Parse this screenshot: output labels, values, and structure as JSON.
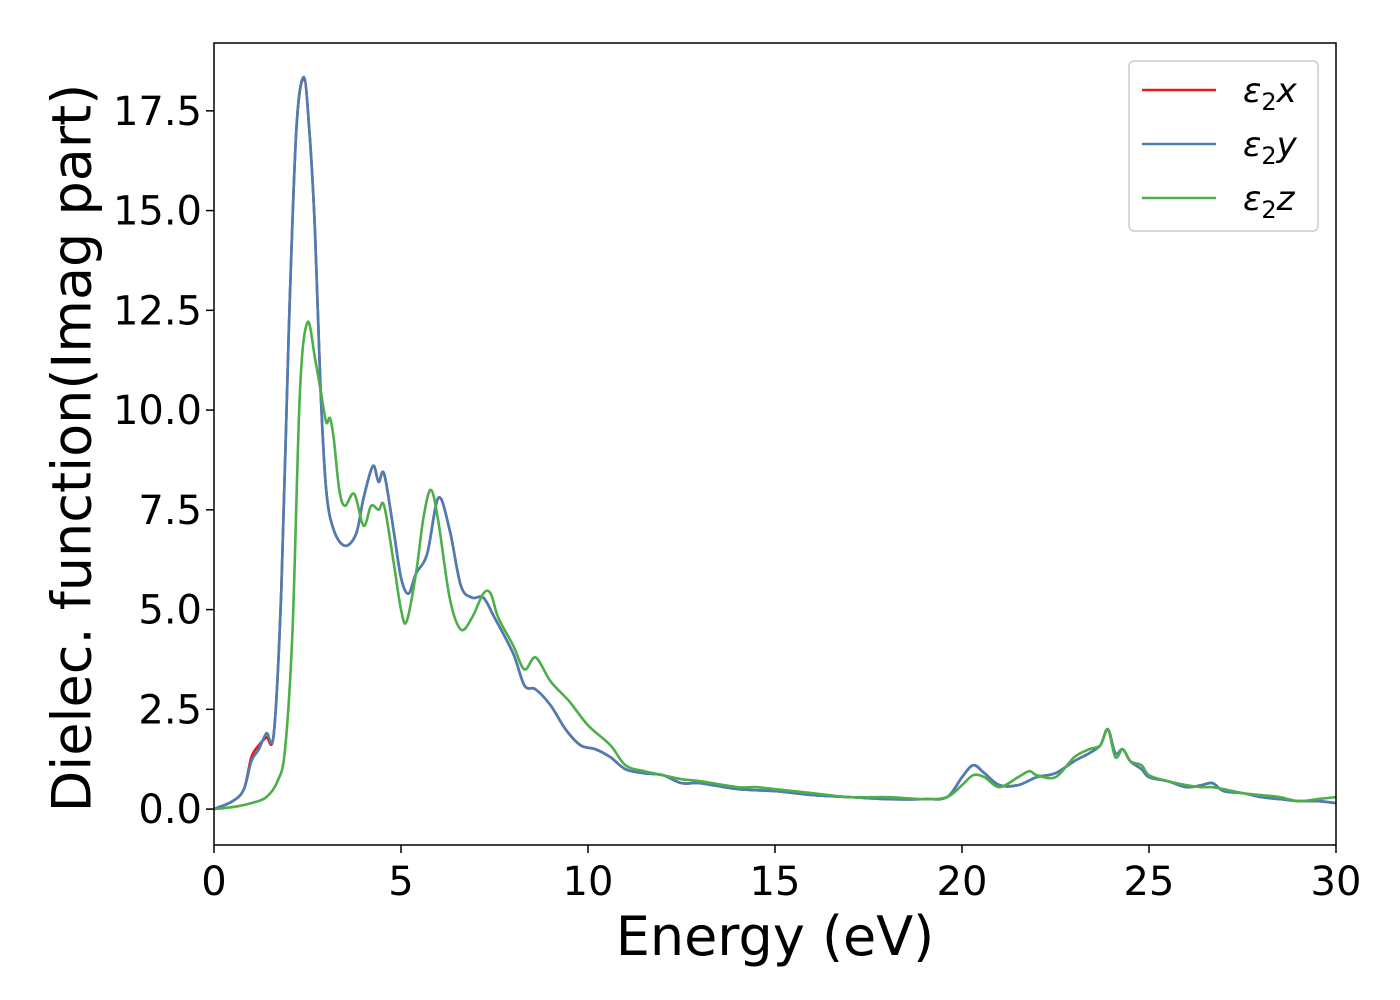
{
  "chart_data": {
    "type": "line",
    "title": "",
    "xlabel": "Energy (eV)",
    "ylabel": "Dielec. function(Imag part)",
    "xlim": [
      0,
      30
    ],
    "ylim": [
      -0.9,
      19.2
    ],
    "xticks": [
      "0",
      "5",
      "10",
      "15",
      "20",
      "25",
      "30"
    ],
    "yticks": [
      "0.0",
      "2.5",
      "5.0",
      "7.5",
      "10.0",
      "12.5",
      "15.0",
      "17.5"
    ],
    "grid": false,
    "legend_position": "top-right",
    "series": [
      {
        "name": "ε₂x",
        "legend_base": "ε",
        "legend_sub": "2",
        "legend_suffix": "x",
        "color": "#e41a1c",
        "x": [
          0,
          0.5,
          0.8,
          1.0,
          1.2,
          1.4,
          1.6,
          1.8,
          2.0,
          2.2,
          2.4,
          2.55,
          2.7,
          2.85,
          3.0,
          3.2,
          3.5,
          3.8,
          4.0,
          4.25,
          4.4,
          4.55,
          4.8,
          5.0,
          5.2,
          5.4,
          5.7,
          6.0,
          6.3,
          6.6,
          6.9,
          7.2,
          7.5,
          8.0,
          8.3,
          8.6,
          9.0,
          9.4,
          9.8,
          10.2,
          10.6,
          11.0,
          11.5,
          12.0,
          12.5,
          13.0,
          14.0,
          15.0,
          16.0,
          17.0,
          18.0,
          19.0,
          19.6,
          20.0,
          20.3,
          20.6,
          21.0,
          21.5,
          22.0,
          22.5,
          23.0,
          23.4,
          23.7,
          23.9,
          24.1,
          24.3,
          24.5,
          24.8,
          25.0,
          25.5,
          26.0,
          26.4,
          26.7,
          27.0,
          27.5,
          28.0,
          28.5,
          29.0,
          29.5,
          30.0
        ],
        "y": [
          0.0,
          0.2,
          0.5,
          1.3,
          1.6,
          1.8,
          1.9,
          5.5,
          12.0,
          17.0,
          18.3,
          17.0,
          14.5,
          10.5,
          8.0,
          7.0,
          6.6,
          6.9,
          7.8,
          8.6,
          8.2,
          8.4,
          7.0,
          5.8,
          5.4,
          5.9,
          6.4,
          7.8,
          7.0,
          5.6,
          5.3,
          5.3,
          4.8,
          3.9,
          3.1,
          3.0,
          2.6,
          2.0,
          1.6,
          1.5,
          1.3,
          1.0,
          0.9,
          0.85,
          0.65,
          0.65,
          0.5,
          0.45,
          0.35,
          0.3,
          0.25,
          0.25,
          0.3,
          0.8,
          1.1,
          0.9,
          0.6,
          0.6,
          0.8,
          0.9,
          1.2,
          1.4,
          1.6,
          2.0,
          1.4,
          1.5,
          1.2,
          1.0,
          0.8,
          0.7,
          0.55,
          0.6,
          0.65,
          0.45,
          0.4,
          0.3,
          0.25,
          0.2,
          0.2,
          0.15
        ]
      },
      {
        "name": "ε₂y",
        "legend_base": "ε",
        "legend_sub": "2",
        "legend_suffix": "y",
        "color": "#4a7eb5",
        "x": [
          0,
          0.5,
          0.8,
          1.0,
          1.2,
          1.4,
          1.6,
          1.8,
          2.0,
          2.2,
          2.4,
          2.55,
          2.7,
          2.85,
          3.0,
          3.2,
          3.5,
          3.8,
          4.0,
          4.25,
          4.4,
          4.55,
          4.8,
          5.0,
          5.2,
          5.4,
          5.7,
          6.0,
          6.3,
          6.6,
          6.9,
          7.2,
          7.5,
          8.0,
          8.3,
          8.6,
          9.0,
          9.4,
          9.8,
          10.2,
          10.6,
          11.0,
          11.5,
          12.0,
          12.5,
          13.0,
          14.0,
          15.0,
          16.0,
          17.0,
          18.0,
          19.0,
          19.6,
          20.0,
          20.3,
          20.6,
          21.0,
          21.5,
          22.0,
          22.5,
          23.0,
          23.4,
          23.7,
          23.9,
          24.1,
          24.3,
          24.5,
          24.8,
          25.0,
          25.5,
          26.0,
          26.4,
          26.7,
          27.0,
          27.5,
          28.0,
          28.5,
          29.0,
          29.5,
          30.0
        ],
        "y": [
          0.0,
          0.2,
          0.5,
          1.2,
          1.5,
          1.9,
          1.9,
          5.5,
          12.0,
          17.0,
          18.35,
          17.0,
          14.5,
          10.5,
          8.0,
          7.0,
          6.6,
          6.9,
          7.8,
          8.6,
          8.2,
          8.4,
          7.0,
          5.8,
          5.4,
          5.9,
          6.4,
          7.8,
          7.0,
          5.6,
          5.3,
          5.3,
          4.8,
          3.9,
          3.1,
          3.0,
          2.6,
          2.0,
          1.6,
          1.5,
          1.3,
          1.0,
          0.9,
          0.85,
          0.65,
          0.65,
          0.5,
          0.45,
          0.35,
          0.3,
          0.25,
          0.25,
          0.3,
          0.8,
          1.1,
          0.9,
          0.6,
          0.6,
          0.8,
          0.9,
          1.2,
          1.4,
          1.6,
          2.0,
          1.4,
          1.5,
          1.2,
          1.0,
          0.8,
          0.7,
          0.55,
          0.6,
          0.65,
          0.45,
          0.4,
          0.3,
          0.25,
          0.2,
          0.2,
          0.15
        ]
      },
      {
        "name": "ε₂z",
        "legend_base": "ε",
        "legend_sub": "2",
        "legend_suffix": "z",
        "color": "#4daf4a",
        "x": [
          0,
          0.5,
          1.0,
          1.4,
          1.7,
          1.9,
          2.1,
          2.3,
          2.5,
          2.7,
          2.85,
          3.0,
          3.1,
          3.2,
          3.35,
          3.5,
          3.75,
          4.0,
          4.2,
          4.4,
          4.55,
          4.8,
          5.0,
          5.15,
          5.4,
          5.6,
          5.8,
          6.0,
          6.3,
          6.6,
          6.9,
          7.2,
          7.4,
          7.6,
          8.0,
          8.3,
          8.6,
          9.0,
          9.5,
          10.0,
          10.6,
          11.0,
          11.5,
          12.0,
          12.5,
          13.0,
          14.0,
          14.5,
          15.0,
          16.0,
          17.0,
          18.0,
          19.0,
          19.6,
          20.0,
          20.3,
          20.6,
          21.0,
          21.5,
          21.8,
          22.0,
          22.5,
          23.0,
          23.4,
          23.7,
          23.9,
          24.1,
          24.3,
          24.5,
          24.8,
          25.0,
          25.5,
          26.0,
          26.4,
          26.7,
          27.0,
          27.5,
          28.0,
          28.5,
          29.0,
          29.5,
          30.0
        ],
        "y": [
          0.0,
          0.05,
          0.15,
          0.3,
          0.7,
          1.5,
          4.5,
          10.5,
          12.2,
          11.3,
          10.5,
          9.7,
          9.8,
          9.3,
          8.0,
          7.6,
          7.9,
          7.1,
          7.6,
          7.5,
          7.6,
          6.2,
          5.0,
          4.7,
          5.9,
          7.3,
          8.0,
          7.2,
          5.3,
          4.5,
          4.8,
          5.4,
          5.4,
          4.8,
          4.1,
          3.5,
          3.8,
          3.2,
          2.7,
          2.1,
          1.6,
          1.1,
          0.95,
          0.85,
          0.75,
          0.7,
          0.55,
          0.55,
          0.5,
          0.4,
          0.3,
          0.3,
          0.25,
          0.3,
          0.6,
          0.85,
          0.8,
          0.55,
          0.8,
          0.95,
          0.85,
          0.8,
          1.3,
          1.5,
          1.6,
          2.0,
          1.3,
          1.5,
          1.2,
          1.1,
          0.85,
          0.7,
          0.6,
          0.55,
          0.55,
          0.5,
          0.4,
          0.35,
          0.3,
          0.2,
          0.25,
          0.3
        ]
      }
    ]
  }
}
